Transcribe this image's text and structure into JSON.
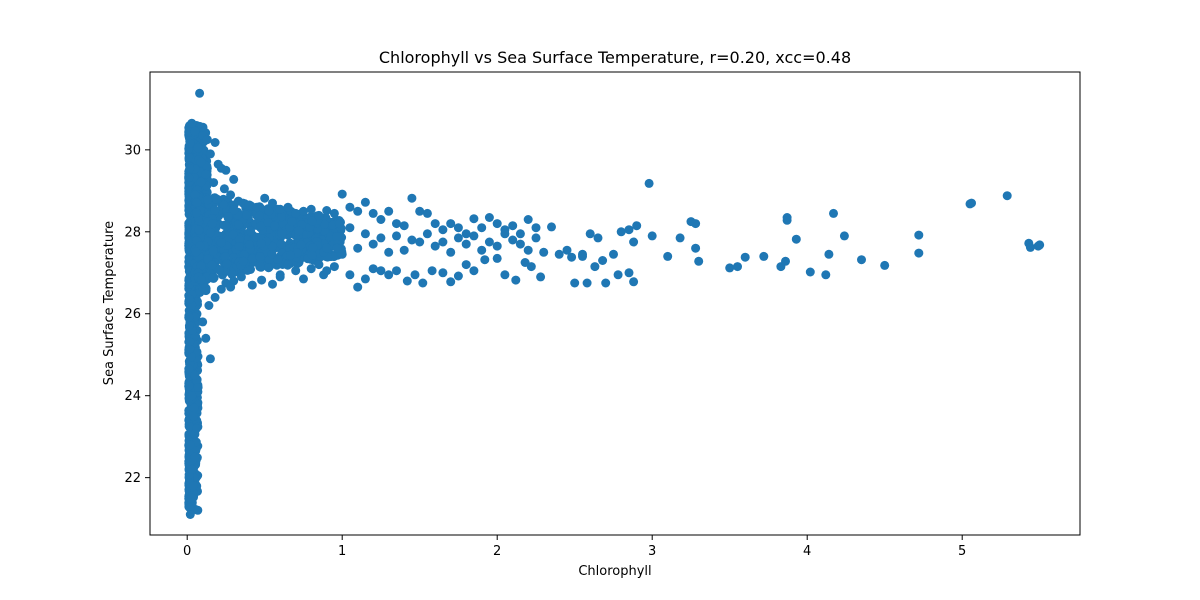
{
  "chart_data": {
    "type": "scatter",
    "title": "Chlorophyll vs Sea Surface Temperature, r=0.20, xcc=0.48",
    "xlabel": "Chlorophyll",
    "ylabel": "Sea Surface Temperature",
    "xlim": [
      -0.24,
      5.76
    ],
    "ylim": [
      20.6,
      31.9
    ],
    "xticks": [
      0,
      1,
      2,
      3,
      4,
      5
    ],
    "yticks": [
      22,
      24,
      26,
      28,
      30
    ],
    "grid": false,
    "legend": "none",
    "marker_color": "#1f77b4",
    "series": [
      {
        "points": [
          [
            0.08,
            31.38
          ],
          [
            0.03,
            30.65
          ],
          [
            0.05,
            30.45
          ],
          [
            0.1,
            30.35
          ],
          [
            0.13,
            30.25
          ],
          [
            0.18,
            30.18
          ],
          [
            0.07,
            30.05
          ],
          [
            0.15,
            29.9
          ],
          [
            0.2,
            29.65
          ],
          [
            0.22,
            29.55
          ],
          [
            0.25,
            29.5
          ],
          [
            0.3,
            29.28
          ],
          [
            0.09,
            29.7
          ],
          [
            0.12,
            29.4
          ],
          [
            0.17,
            29.2
          ],
          [
            0.24,
            29.05
          ],
          [
            0.28,
            28.9
          ],
          [
            0.33,
            28.75
          ],
          [
            0.36,
            28.7
          ],
          [
            0.4,
            28.65
          ],
          [
            0.45,
            28.6
          ],
          [
            0.5,
            28.82
          ],
          [
            0.55,
            28.7
          ],
          [
            0.6,
            28.55
          ],
          [
            0.65,
            28.6
          ],
          [
            0.7,
            28.45
          ],
          [
            0.75,
            28.5
          ],
          [
            0.8,
            28.55
          ],
          [
            0.85,
            28.4
          ],
          [
            0.9,
            28.52
          ],
          [
            0.95,
            28.45
          ],
          [
            1.0,
            28.92
          ],
          [
            1.05,
            28.6
          ],
          [
            1.1,
            28.5
          ],
          [
            1.15,
            28.72
          ],
          [
            1.2,
            28.45
          ],
          [
            1.25,
            28.3
          ],
          [
            1.3,
            28.5
          ],
          [
            1.35,
            28.2
          ],
          [
            1.4,
            28.15
          ],
          [
            1.45,
            28.82
          ],
          [
            1.5,
            28.5
          ],
          [
            1.55,
            28.45
          ],
          [
            1.6,
            28.2
          ],
          [
            1.65,
            28.05
          ],
          [
            1.7,
            28.2
          ],
          [
            1.75,
            28.1
          ],
          [
            1.8,
            27.95
          ],
          [
            1.85,
            28.32
          ],
          [
            1.9,
            28.1
          ],
          [
            1.95,
            28.35
          ],
          [
            2.0,
            28.2
          ],
          [
            2.05,
            28.05
          ],
          [
            2.1,
            28.15
          ],
          [
            2.15,
            27.95
          ],
          [
            2.2,
            28.3
          ],
          [
            2.25,
            28.1
          ],
          [
            2.35,
            28.12
          ],
          [
            2.45,
            27.55
          ],
          [
            2.55,
            27.45
          ],
          [
            2.6,
            27.95
          ],
          [
            2.65,
            27.85
          ],
          [
            2.75,
            27.45
          ],
          [
            2.8,
            28.0
          ],
          [
            2.85,
            28.05
          ],
          [
            2.9,
            28.15
          ],
          [
            2.98,
            29.18
          ],
          [
            3.0,
            27.9
          ],
          [
            3.1,
            27.4
          ],
          [
            3.18,
            27.85
          ],
          [
            3.25,
            28.25
          ],
          [
            3.28,
            28.2
          ],
          [
            3.28,
            27.6
          ],
          [
            3.3,
            27.28
          ],
          [
            3.5,
            27.12
          ],
          [
            3.55,
            27.15
          ],
          [
            3.6,
            27.38
          ],
          [
            3.72,
            27.4
          ],
          [
            3.83,
            27.15
          ],
          [
            3.86,
            27.28
          ],
          [
            3.87,
            28.35
          ],
          [
            3.87,
            28.28
          ],
          [
            3.93,
            27.82
          ],
          [
            4.02,
            27.02
          ],
          [
            4.12,
            26.95
          ],
          [
            4.14,
            27.45
          ],
          [
            4.17,
            28.45
          ],
          [
            4.24,
            27.9
          ],
          [
            4.35,
            27.32
          ],
          [
            4.5,
            27.18
          ],
          [
            4.72,
            27.92
          ],
          [
            4.72,
            27.48
          ],
          [
            5.05,
            28.68
          ],
          [
            5.06,
            28.7
          ],
          [
            5.29,
            28.88
          ],
          [
            5.43,
            27.72
          ],
          [
            5.44,
            27.62
          ],
          [
            5.49,
            27.65
          ],
          [
            5.5,
            27.68
          ],
          [
            0.25,
            26.75
          ],
          [
            0.3,
            26.8
          ],
          [
            0.35,
            26.9
          ],
          [
            0.42,
            26.7
          ],
          [
            0.48,
            26.82
          ],
          [
            0.55,
            26.72
          ],
          [
            0.6,
            26.95
          ],
          [
            0.7,
            27.05
          ],
          [
            0.75,
            26.85
          ],
          [
            0.8,
            27.1
          ],
          [
            0.88,
            26.95
          ],
          [
            0.95,
            27.15
          ],
          [
            1.05,
            26.95
          ],
          [
            1.1,
            26.65
          ],
          [
            1.15,
            26.85
          ],
          [
            1.2,
            27.1
          ],
          [
            1.25,
            27.05
          ],
          [
            1.3,
            26.95
          ],
          [
            1.35,
            27.05
          ],
          [
            1.42,
            26.8
          ],
          [
            1.47,
            26.95
          ],
          [
            1.52,
            26.75
          ],
          [
            1.58,
            27.05
          ],
          [
            1.65,
            27.0
          ],
          [
            1.7,
            26.78
          ],
          [
            1.75,
            26.92
          ],
          [
            1.8,
            27.2
          ],
          [
            1.85,
            27.05
          ],
          [
            1.92,
            27.32
          ],
          [
            2.0,
            27.35
          ],
          [
            2.05,
            26.95
          ],
          [
            2.12,
            26.82
          ],
          [
            2.18,
            27.25
          ],
          [
            2.22,
            27.15
          ],
          [
            2.28,
            26.9
          ],
          [
            2.48,
            27.38
          ],
          [
            2.5,
            26.75
          ],
          [
            2.58,
            26.75
          ],
          [
            2.63,
            27.15
          ],
          [
            2.7,
            26.75
          ],
          [
            2.78,
            26.95
          ],
          [
            2.85,
            27.0
          ],
          [
            2.88,
            26.78
          ],
          [
            1.0,
            27.45
          ],
          [
            1.1,
            27.6
          ],
          [
            1.2,
            27.7
          ],
          [
            1.3,
            27.5
          ],
          [
            1.4,
            27.55
          ],
          [
            1.5,
            27.75
          ],
          [
            1.6,
            27.65
          ],
          [
            1.7,
            27.5
          ],
          [
            1.8,
            27.7
          ],
          [
            1.9,
            27.55
          ],
          [
            2.0,
            27.65
          ],
          [
            2.1,
            27.8
          ],
          [
            2.2,
            27.55
          ],
          [
            2.3,
            27.5
          ],
          [
            2.4,
            27.45
          ],
          [
            2.55,
            27.4
          ],
          [
            2.68,
            27.3
          ],
          [
            2.88,
            27.75
          ],
          [
            1.05,
            28.1
          ],
          [
            1.15,
            27.95
          ],
          [
            1.25,
            27.85
          ],
          [
            1.35,
            27.9
          ],
          [
            1.45,
            27.8
          ],
          [
            1.55,
            27.95
          ],
          [
            1.65,
            27.75
          ],
          [
            1.75,
            27.85
          ],
          [
            1.85,
            27.9
          ],
          [
            1.95,
            27.75
          ],
          [
            2.05,
            27.95
          ],
          [
            2.15,
            27.7
          ],
          [
            2.25,
            27.85
          ],
          [
            0.6,
            26.9
          ],
          [
            0.65,
            27.2
          ],
          [
            0.85,
            27.2
          ],
          [
            0.9,
            27.05
          ],
          [
            0.22,
            26.6
          ],
          [
            0.28,
            26.65
          ],
          [
            0.15,
            24.9
          ],
          [
            0.12,
            25.4
          ],
          [
            0.1,
            25.8
          ],
          [
            0.14,
            26.2
          ],
          [
            0.18,
            26.4
          ],
          [
            0.05,
            24.5
          ],
          [
            0.03,
            24.0
          ],
          [
            0.04,
            23.5
          ],
          [
            0.02,
            22.8
          ],
          [
            0.03,
            22.2
          ],
          [
            0.04,
            21.8
          ],
          [
            0.03,
            21.5
          ],
          [
            0.02,
            21.1
          ],
          [
            0.05,
            22.5
          ],
          [
            0.06,
            23.2
          ],
          [
            0.07,
            24.2
          ]
        ]
      }
    ]
  }
}
